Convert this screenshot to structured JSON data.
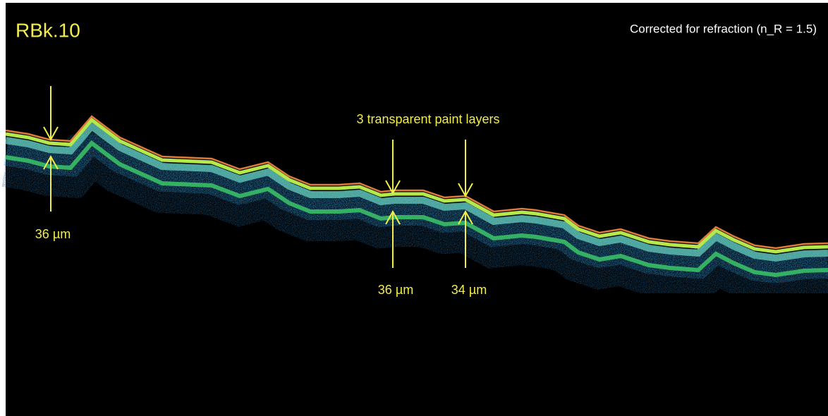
{
  "header": {
    "title": "RBk.10",
    "note": "Corrected for refraction (n_R = 1.5)"
  },
  "annotations": {
    "layers_label": "3 transparent paint layers",
    "measurements": [
      "36 µm",
      "36 µm",
      "34 µm"
    ]
  }
}
